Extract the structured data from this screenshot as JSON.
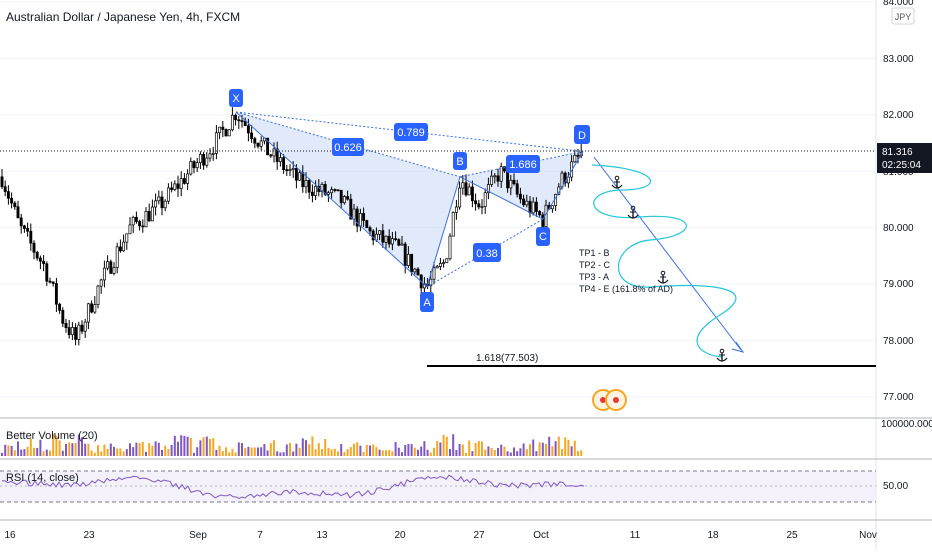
{
  "header": {
    "title": "Australian Dollar / Japanese Yen, 4h, FXCM"
  },
  "price_axis": {
    "currency_badge": "JPY",
    "labels": [
      "84.000",
      "83.000",
      "82.000",
      "81.000",
      "80.000",
      "79.000",
      "78.000",
      "77.000"
    ],
    "current_price": "81.316",
    "countdown": "02:25:04"
  },
  "time_axis": {
    "labels": [
      "16",
      "23",
      "Sep",
      "7",
      "13",
      "20",
      "27",
      "Oct",
      "11",
      "18",
      "25",
      "Nov"
    ]
  },
  "pattern": {
    "points": {
      "x": "X",
      "a": "A",
      "b": "B",
      "c": "C",
      "d": "D"
    },
    "ratios": {
      "xb": "0.626",
      "xd": "0.789",
      "bd": "1.686",
      "ac": "0.38"
    },
    "extension_label": "1.618(77.503)"
  },
  "targets": [
    "TP1 - B",
    "TP2 - C",
    "TP3 - A",
    "TP4 - E (161.8% of AD)"
  ],
  "volume_panel": {
    "label": "Better Volume (20)",
    "axis_label": "100000.000"
  },
  "rsi_panel": {
    "label": "RSI (14, close)",
    "axis_label": "50.00"
  },
  "colors": {
    "pattern_fill": "#c9d8f7",
    "pattern_line": "#3a6fe0",
    "label_bg": "#2962ff",
    "projection_wave": "#26c6da",
    "projection_arrow": "#3a6fe0",
    "candle": "#000000",
    "volume_orange": "#f5a623",
    "volume_purple": "#7e57c2",
    "rsi_line": "#7e57c2",
    "rsi_band": "#ede7f6"
  },
  "chart_data": {
    "type": "candlestick",
    "symbol": "AUD/JPY",
    "timeframe": "4h",
    "ylim": [
      76.6,
      84.0
    ],
    "pattern_prices": {
      "X": 82.05,
      "A": 78.95,
      "B": 80.9,
      "C": 80.15,
      "D": 81.35
    },
    "extension_level": 77.503,
    "current_price": 81.316,
    "rsi_levels": [
      30,
      50,
      70
    ]
  }
}
